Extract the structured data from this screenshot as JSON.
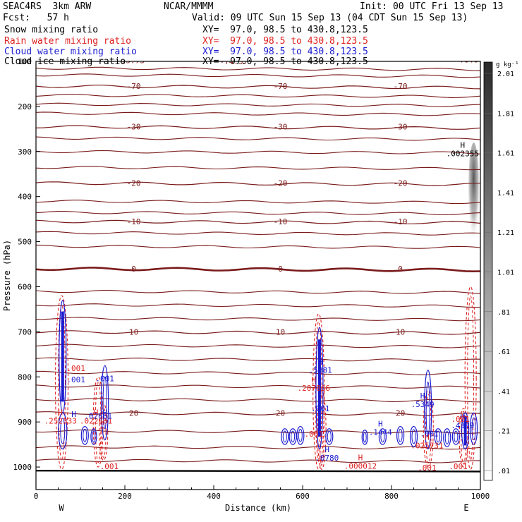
{
  "header": {
    "project": "SEAC4RS  3km ARW",
    "org": "NCAR/MMMM",
    "init": "Init: 00 UTC Fri 13 Sep 13",
    "fcst": "Fcst:   57 h",
    "valid": "Valid: 09 UTC Sun 15 Sep 13 (04 CDT Sun 15 Sep 13)"
  },
  "fields": [
    {
      "label": "Snow mixing ratio",
      "xy": "XY=  97.0, 98.5 to 430.8,123.5",
      "color": "#000000"
    },
    {
      "label": "Rain water mixing ratio",
      "xy": "XY=  97.0, 98.5 to 430.8,123.5",
      "color": "#dd2020"
    },
    {
      "label": "Cloud water mixing ratio",
      "xy": "XY=  97.0, 98.5 to 430.8,123.5",
      "color": "#1a1ad0"
    },
    {
      "label": "Cloud ice mixing ratio",
      "xy": "XY=  97.0, 98.5 to 430.8,123.5",
      "color": "#000000"
    }
  ],
  "chart_data": {
    "type": "contour",
    "xlabel": "Distance (km)",
    "ylabel": "Pressure (hPa)",
    "xlim": [
      0,
      1000
    ],
    "ylim": [
      1050,
      100
    ],
    "x_ticks": [
      "0",
      "200",
      "400",
      "600",
      "800",
      "1000"
    ],
    "y_ticks": [
      "100",
      "200",
      "300",
      "400",
      "500",
      "600",
      "700",
      "800",
      "900",
      "1000"
    ],
    "x_end_labels": {
      "left": "W",
      "right": "E"
    },
    "colorbar": {
      "unit": "g kg⁻¹",
      "levels": [
        ".01",
        ".21",
        ".41",
        ".61",
        ".81",
        "1.01",
        "1.21",
        "1.41",
        "1.61",
        "1.81",
        "2.01"
      ]
    },
    "temperature_contours": {
      "color": "#7a1a1a",
      "lines": [
        {
          "p": 155,
          "label": "-70"
        },
        {
          "p": 245,
          "label": "-30"
        },
        {
          "p": 370,
          "label": "-20"
        },
        {
          "p": 455,
          "label": "-10"
        },
        {
          "p": 560,
          "label": "0"
        },
        {
          "p": 700,
          "label": "10"
        },
        {
          "p": 880,
          "label": "20"
        }
      ],
      "extra_p": [
        115,
        130,
        175,
        195,
        215,
        270,
        300,
        335,
        410,
        435,
        480,
        510,
        610,
        640,
        670,
        730,
        760,
        790,
        820,
        850,
        920,
        955,
        985
      ]
    },
    "annotations": [
      {
        "x": 218,
        "p": 104,
        "text": "75.73",
        "color": "#7a1a1a"
      },
      {
        "x": 445,
        "p": 106,
        "text": "-74.37",
        "color": "#7a1a1a"
      },
      {
        "x": 975,
        "p": 102,
        "text": "-75.90",
        "color": "#7a1a1a"
      },
      {
        "x": 960,
        "p": 292,
        "text": "H\n.002355",
        "color": "#000000"
      },
      {
        "x": 55,
        "p": 885,
        "text": "H\n.252333",
        "color": "#dd2020"
      },
      {
        "x": 85,
        "p": 889,
        "text": "H",
        "color": "#1a1ad0"
      },
      {
        "x": 135,
        "p": 885,
        "text": "H\n.022661",
        "color": "#dd2020"
      },
      {
        "x": 155,
        "p": 885,
        "text": "H",
        "color": "#1a1ad0"
      },
      {
        "x": 90,
        "p": 787,
        "text": ".001",
        "color": "#dd2020"
      },
      {
        "x": 90,
        "p": 812,
        "text": ".001",
        "color": "#1a1ad0"
      },
      {
        "x": 155,
        "p": 810,
        "text": ".001",
        "color": "#1a1ad0"
      },
      {
        "x": 140,
        "p": 893,
        "text": ".02661",
        "color": "#1a1ad0"
      },
      {
        "x": 640,
        "p": 772,
        "text": "H\n.5381",
        "color": "#1a1ad0"
      },
      {
        "x": 625,
        "p": 812,
        "text": "H\n.207066",
        "color": "#dd2020"
      },
      {
        "x": 640,
        "p": 876,
        "text": ".001",
        "color": "#1a1ad0"
      },
      {
        "x": 625,
        "p": 933,
        "text": ".001",
        "color": "#dd2020"
      },
      {
        "x": 655,
        "p": 967,
        "text": "H\n.0780",
        "color": "#1a1ad0"
      },
      {
        "x": 775,
        "p": 910,
        "text": "H\n.1444",
        "color": "#1a1ad0"
      },
      {
        "x": 730,
        "p": 985,
        "text": "H\n.000012",
        "color": "#dd2020"
      },
      {
        "x": 870,
        "p": 848,
        "text": "H\n.5349",
        "color": "#1a1ad0"
      },
      {
        "x": 885,
        "p": 932,
        "text": ".001",
        "color": "#1a1ad0"
      },
      {
        "x": 880,
        "p": 940,
        "text": "H\n.025731",
        "color": "#dd2020"
      },
      {
        "x": 960,
        "p": 895,
        "text": "H\n.4389",
        "color": "#1a1ad0"
      },
      {
        "x": 955,
        "p": 900,
        "text": ".001",
        "color": "#dd2020"
      },
      {
        "x": 165,
        "p": 1005,
        "text": ".001",
        "color": "#dd2020"
      },
      {
        "x": 880,
        "p": 1008,
        "text": ".001",
        "color": "#dd2020"
      },
      {
        "x": 950,
        "p": 1005,
        "text": ".001",
        "color": "#dd2020"
      }
    ],
    "rain_cells": [
      {
        "x": 58,
        "ptop": 620,
        "pbot": 1005,
        "w": 9
      },
      {
        "x": 140,
        "ptop": 800,
        "pbot": 1000,
        "w": 7
      },
      {
        "x": 152,
        "ptop": 860,
        "pbot": 985,
        "w": 6
      },
      {
        "x": 636,
        "ptop": 660,
        "pbot": 1005,
        "w": 8
      },
      {
        "x": 643,
        "ptop": 830,
        "pbot": 1005,
        "w": 6
      },
      {
        "x": 883,
        "ptop": 830,
        "pbot": 1000,
        "w": 7
      },
      {
        "x": 978,
        "ptop": 600,
        "pbot": 1005,
        "w": 8
      },
      {
        "x": 962,
        "ptop": 870,
        "pbot": 1000,
        "w": 6
      }
    ],
    "cloud_cells": [
      {
        "x": 60,
        "ptop": 630,
        "pbot": 880,
        "w": 5,
        "fill": true
      },
      {
        "x": 60,
        "ptop": 880,
        "pbot": 960,
        "w": 6,
        "fill": false
      },
      {
        "x": 155,
        "ptop": 775,
        "pbot": 940,
        "w": 5,
        "fill": false
      },
      {
        "x": 638,
        "ptop": 690,
        "pbot": 960,
        "w": 5,
        "fill": true
      },
      {
        "x": 882,
        "ptop": 785,
        "pbot": 960,
        "w": 5,
        "fill": false
      },
      {
        "x": 966,
        "ptop": 880,
        "pbot": 960,
        "w": 5,
        "fill": true
      },
      {
        "x": 985,
        "ptop": 880,
        "pbot": 950,
        "w": 5,
        "fill": false
      },
      {
        "x": 110,
        "ptop": 910,
        "pbot": 950,
        "w": 5,
        "fill": false
      },
      {
        "x": 130,
        "ptop": 915,
        "pbot": 950,
        "w": 4,
        "fill": false
      },
      {
        "x": 560,
        "ptop": 915,
        "pbot": 950,
        "w": 5,
        "fill": false
      },
      {
        "x": 578,
        "ptop": 915,
        "pbot": 950,
        "w": 5,
        "fill": false
      },
      {
        "x": 595,
        "ptop": 910,
        "pbot": 950,
        "w": 5,
        "fill": false
      },
      {
        "x": 660,
        "ptop": 915,
        "pbot": 950,
        "w": 5,
        "fill": false
      },
      {
        "x": 740,
        "ptop": 918,
        "pbot": 950,
        "w": 4,
        "fill": false
      },
      {
        "x": 780,
        "ptop": 915,
        "pbot": 950,
        "w": 5,
        "fill": false
      },
      {
        "x": 820,
        "ptop": 910,
        "pbot": 950,
        "w": 5,
        "fill": false
      },
      {
        "x": 850,
        "ptop": 910,
        "pbot": 955,
        "w": 5,
        "fill": false
      },
      {
        "x": 905,
        "ptop": 915,
        "pbot": 950,
        "w": 5,
        "fill": false
      },
      {
        "x": 925,
        "ptop": 915,
        "pbot": 955,
        "w": 5,
        "fill": false
      },
      {
        "x": 945,
        "ptop": 915,
        "pbot": 950,
        "w": 5,
        "fill": false
      }
    ],
    "snow_shading": {
      "x": 985,
      "ptop": 280,
      "pbot": 510
    }
  }
}
